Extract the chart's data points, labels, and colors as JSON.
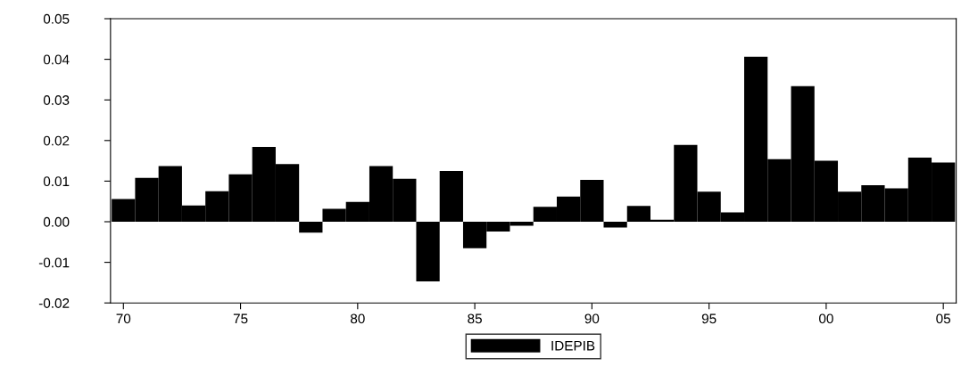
{
  "chart_data": {
    "type": "bar",
    "x": [
      1970,
      1971,
      1972,
      1973,
      1974,
      1975,
      1976,
      1977,
      1978,
      1979,
      1980,
      1981,
      1982,
      1983,
      1984,
      1985,
      1986,
      1987,
      1988,
      1989,
      1990,
      1991,
      1992,
      1993,
      1994,
      1995,
      1996,
      1997,
      1998,
      1999,
      2000,
      2001,
      2002,
      2003,
      2004,
      2005
    ],
    "series": [
      {
        "name": "IDEPIB",
        "color": "#000000",
        "values": [
          0.0056,
          0.0108,
          0.0137,
          0.004,
          0.0075,
          0.0117,
          0.0184,
          0.0142,
          -0.0027,
          0.0032,
          0.0049,
          0.0137,
          0.0106,
          -0.0147,
          0.0125,
          -0.0065,
          -0.0024,
          -0.001,
          0.0037,
          0.0062,
          0.0103,
          -0.0014,
          0.0039,
          0.0005,
          0.0189,
          0.0074,
          0.0023,
          0.0406,
          0.0154,
          0.0334,
          0.015,
          0.0074,
          0.009,
          0.0082,
          0.0158,
          0.0146
        ]
      }
    ],
    "xlim": [
      1969.45,
      2005.55
    ],
    "xticks": [
      {
        "value": 1970,
        "label": "70"
      },
      {
        "value": 1975,
        "label": "75"
      },
      {
        "value": 1980,
        "label": "80"
      },
      {
        "value": 1985,
        "label": "85"
      },
      {
        "value": 1990,
        "label": "90"
      },
      {
        "value": 1995,
        "label": "95"
      },
      {
        "value": 2000,
        "label": "00"
      },
      {
        "value": 2005,
        "label": "05"
      }
    ],
    "ylim": [
      -0.02,
      0.05
    ],
    "yticks": [
      {
        "value": -0.02,
        "label": "-0.02"
      },
      {
        "value": -0.01,
        "label": "-0.01"
      },
      {
        "value": 0,
        "label": "0.00"
      },
      {
        "value": 0.01,
        "label": "0.01"
      },
      {
        "value": 0.02,
        "label": "0.02"
      },
      {
        "value": 0.03,
        "label": "0.03"
      },
      {
        "value": 0.04,
        "label": "0.04"
      },
      {
        "value": 0.05,
        "label": "0.05"
      }
    ],
    "grid": false,
    "legend": "bottom"
  }
}
